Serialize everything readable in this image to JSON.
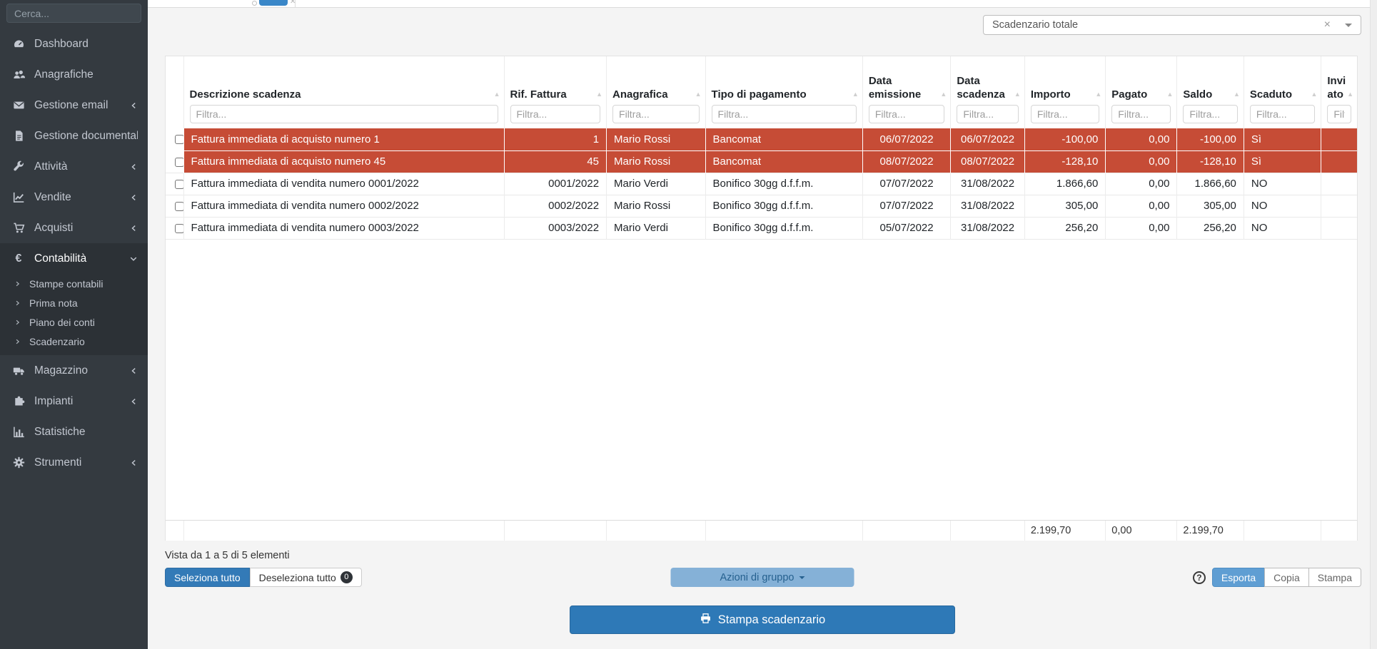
{
  "colors": {
    "accent": "#337ab7",
    "overdue_row": "#c64c36",
    "sidebar_bg": "#343a40",
    "primary_button": "#2e79b7"
  },
  "sidebar": {
    "search_placeholder": "Cerca...",
    "items": [
      {
        "label": "Dashboard",
        "icon": "gauge",
        "chevron": ""
      },
      {
        "label": "Anagrafiche",
        "icon": "users",
        "chevron": ""
      },
      {
        "label": "Gestione email",
        "icon": "envelope",
        "chevron": "left"
      },
      {
        "label": "Gestione documentale",
        "icon": "document",
        "chevron": ""
      },
      {
        "label": "Attività",
        "icon": "wrench",
        "chevron": "left"
      },
      {
        "label": "Vendite",
        "icon": "chart-line",
        "chevron": "left"
      },
      {
        "label": "Acquisti",
        "icon": "cart",
        "chevron": "left"
      },
      {
        "label": "Contabilità",
        "icon": "euro",
        "chevron": "down",
        "active": true,
        "submenu": [
          "Stampe contabili",
          "Prima nota",
          "Piano dei conti",
          "Scadenzario"
        ]
      },
      {
        "label": "Magazzino",
        "icon": "truck",
        "chevron": "left"
      },
      {
        "label": "Impianti",
        "icon": "puzzle",
        "chevron": "left"
      },
      {
        "label": "Statistiche",
        "icon": "bar-chart",
        "chevron": ""
      },
      {
        "label": "Strumenti",
        "icon": "gear",
        "chevron": "left"
      }
    ]
  },
  "toolbar": {
    "scope_select_value": "Scadenzario totale"
  },
  "table": {
    "columns": [
      {
        "label": "",
        "placeholder": ""
      },
      {
        "label": "Descrizione scadenza",
        "placeholder": "Filtra..."
      },
      {
        "label": "Rif. Fattura",
        "placeholder": "Filtra..."
      },
      {
        "label": "Anagrafica",
        "placeholder": "Filtra..."
      },
      {
        "label": "Tipo di pagamento",
        "placeholder": "Filtra..."
      },
      {
        "label": "Data emissione",
        "placeholder": "Filtra..."
      },
      {
        "label": "Data scadenza",
        "placeholder": "Filtra..."
      },
      {
        "label": "Importo",
        "placeholder": "Filtra..."
      },
      {
        "label": "Pagato",
        "placeholder": "Filtra..."
      },
      {
        "label": "Saldo",
        "placeholder": "Filtra..."
      },
      {
        "label": "Scaduto",
        "placeholder": "Filtra..."
      },
      {
        "label": "Inviato",
        "placeholder": "Filtra..."
      }
    ],
    "rows": [
      {
        "desc": "Fattura immediata di acquisto numero 1",
        "rif": "1",
        "anagrafica": "Mario Rossi",
        "tipo": "Bancomat",
        "emissione": "06/07/2022",
        "scadenza": "06/07/2022",
        "importo": "-100,00",
        "pagato": "0,00",
        "saldo": "-100,00",
        "scaduto": "Sì",
        "inviato": "",
        "overdue": true
      },
      {
        "desc": "Fattura immediata di acquisto numero 45",
        "rif": "45",
        "anagrafica": "Mario Rossi",
        "tipo": "Bancomat",
        "emissione": "08/07/2022",
        "scadenza": "08/07/2022",
        "importo": "-128,10",
        "pagato": "0,00",
        "saldo": "-128,10",
        "scaduto": "Sì",
        "inviato": "",
        "overdue": true
      },
      {
        "desc": "Fattura immediata di vendita numero 0001/2022",
        "rif": "0001/2022",
        "anagrafica": "Mario Verdi",
        "tipo": "Bonifico 30gg d.f.f.m.",
        "emissione": "07/07/2022",
        "scadenza": "31/08/2022",
        "importo": "1.866,60",
        "pagato": "0,00",
        "saldo": "1.866,60",
        "scaduto": "NO",
        "inviato": "",
        "overdue": false
      },
      {
        "desc": "Fattura immediata di vendita numero 0002/2022",
        "rif": "0002/2022",
        "anagrafica": "Mario Rossi",
        "tipo": "Bonifico 30gg d.f.f.m.",
        "emissione": "07/07/2022",
        "scadenza": "31/08/2022",
        "importo": "305,00",
        "pagato": "0,00",
        "saldo": "305,00",
        "scaduto": "NO",
        "inviato": "",
        "overdue": false
      },
      {
        "desc": "Fattura immediata di vendita numero 0003/2022",
        "rif": "0003/2022",
        "anagrafica": "Mario Verdi",
        "tipo": "Bonifico 30gg d.f.f.m.",
        "emissione": "05/07/2022",
        "scadenza": "31/08/2022",
        "importo": "256,20",
        "pagato": "0,00",
        "saldo": "256,20",
        "scaduto": "NO",
        "inviato": "",
        "overdue": false
      }
    ],
    "totals": {
      "importo": "2.199,70",
      "pagato": "0,00",
      "saldo": "2.199,70"
    }
  },
  "footer": {
    "info": "Vista da 1 a 5 di 5 elementi",
    "select_all": "Seleziona tutto",
    "deselect_all": "Deseleziona tutto",
    "deselect_count": "0",
    "group_actions": "Azioni di gruppo",
    "export_label": "Esporta",
    "copy_label": "Copia",
    "print_label": "Stampa",
    "print_schedule": "Stampa scadenzario"
  }
}
